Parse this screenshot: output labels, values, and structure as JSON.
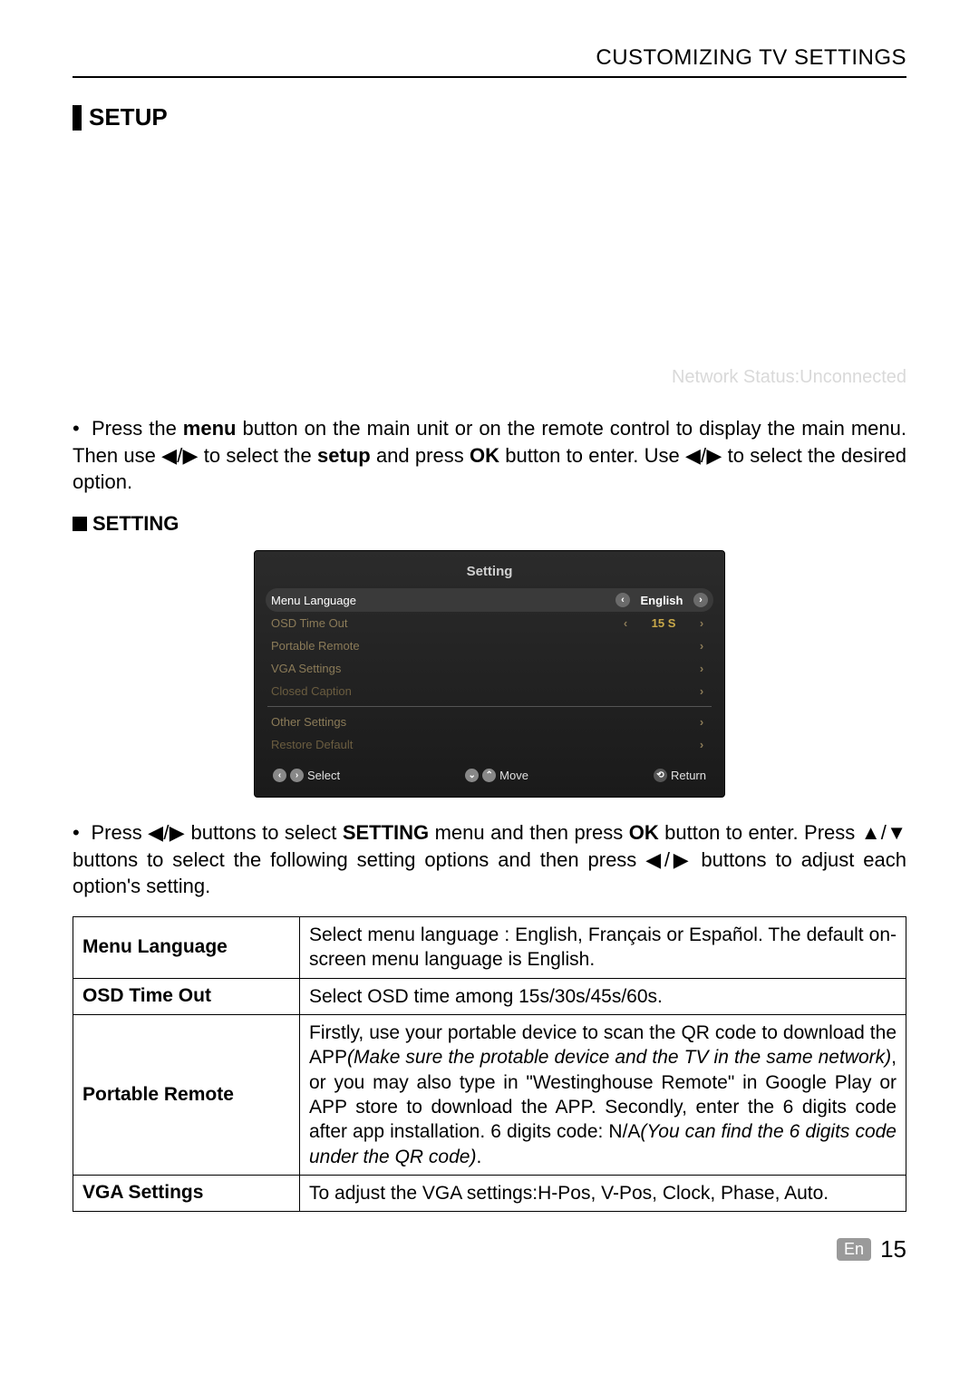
{
  "header": {
    "title": "CUSTOMIZING TV SETTINGS"
  },
  "section": {
    "label": "SETUP"
  },
  "faintStatus": "Network Status:Unconnected",
  "intro": {
    "pre": "Press the ",
    "menu": "menu",
    "mid1": " button on the main unit or on the remote control to display the main menu. Then use ◀/▶ to select the ",
    "setup": "setup",
    "mid2": " and press ",
    "ok": "OK",
    "mid3": " button to enter. Use ◀/▶ to select the desired option."
  },
  "sub": {
    "label": "SETTING"
  },
  "osd": {
    "title": "Setting",
    "rows": [
      {
        "label": "Menu Language",
        "value": "English",
        "active": true
      },
      {
        "label": "OSD Time Out",
        "value": "15 S"
      },
      {
        "label": "Portable Remote",
        "value": ""
      },
      {
        "label": "VGA Settings",
        "value": ""
      },
      {
        "label": "Closed Caption",
        "value": ""
      },
      {
        "label": "Other Settings",
        "value": ""
      },
      {
        "label": "Restore Default",
        "value": ""
      }
    ],
    "footer": {
      "select": "Select",
      "move": "Move",
      "ret": "Return"
    }
  },
  "para2": {
    "pre": "Press ◀/▶ buttons to select ",
    "b1": "SETTING",
    "mid1": " menu and then press ",
    "b2": "OK",
    "mid2": " button to enter. Press ▲/▼ buttons to select the following setting options and then press ◀/▶ buttons to adjust each option's setting."
  },
  "table": {
    "menuLang": {
      "key": "Menu Language",
      "val": "Select menu language : English, Français or Español. The default on-screen menu language is English."
    },
    "osdTime": {
      "key": "OSD Time Out",
      "val": "Select OSD time among 15s/30s/45s/60s."
    },
    "portable": {
      "key": "Portable Remote",
      "t1": "Firstly, use your portable device to scan the QR code to download the APP",
      "i1": "(Make sure the protable device and the TV in the same network)",
      "t2": ", or you may also type in \"Westinghouse Remote\" in Google Play or APP store to download the APP. Secondly, enter the 6 digits code after app installation. 6 digits code: N/A",
      "i2": "(You can find the 6 digits code under the QR code)",
      "t3": "."
    },
    "vga": {
      "key": "VGA Settings",
      "val": "To adjust the VGA settings:H-Pos, V-Pos, Clock, Phase, Auto."
    }
  },
  "footer": {
    "en": "En",
    "page": "15"
  }
}
